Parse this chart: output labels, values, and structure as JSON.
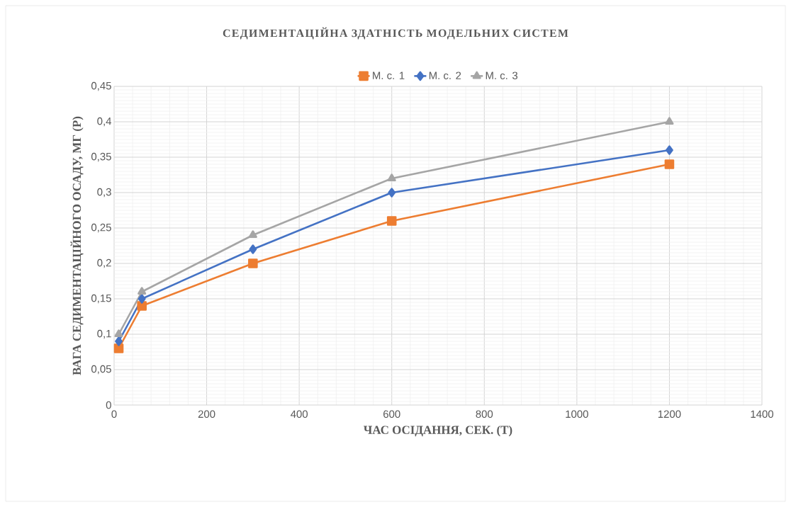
{
  "chart_data": {
    "type": "line",
    "title": "СЕДИМЕНТАЦІЙНА ЗДАТНІСТЬ МОДЕЛЬНИХ СИСТЕМ",
    "xlabel": "ЧАС ОСІДАННЯ, СЕК. (Т)",
    "ylabel": "ВАГА СЕДИМЕНТАЦІЙНОГО ОСАДУ, МГ (Р)",
    "x": [
      10,
      60,
      300,
      600,
      1200
    ],
    "series": [
      {
        "name": "М. с. 1",
        "color": "#ed7d31",
        "marker": "square",
        "values": [
          0.08,
          0.14,
          0.2,
          0.26,
          0.34
        ]
      },
      {
        "name": "М. с. 2",
        "color": "#4472c4",
        "marker": "diamond",
        "values": [
          0.09,
          0.15,
          0.22,
          0.3,
          0.36
        ]
      },
      {
        "name": "М. с. 3",
        "color": "#a5a5a5",
        "marker": "triangle",
        "values": [
          0.1,
          0.16,
          0.24,
          0.32,
          0.4
        ]
      }
    ],
    "xlim": [
      0,
      1400
    ],
    "xticks": [
      0,
      200,
      400,
      600,
      800,
      1000,
      1200,
      1400
    ],
    "ylim": [
      0,
      0.45
    ],
    "yticks": [
      0,
      {
        "value": 0.05,
        "label": "0,05"
      },
      {
        "value": 0.1,
        "label": "0,1"
      },
      {
        "value": 0.15,
        "label": "0,15"
      },
      {
        "value": 0.2,
        "label": "0,2"
      },
      {
        "value": 0.25,
        "label": "0,25"
      },
      {
        "value": 0.3,
        "label": "0,3"
      },
      {
        "value": 0.35,
        "label": "0,35"
      },
      {
        "value": 0.4,
        "label": "0,4"
      },
      {
        "value": 0.45,
        "label": "0,45"
      }
    ],
    "grid": true,
    "legend": "top",
    "line_style": "solid"
  }
}
